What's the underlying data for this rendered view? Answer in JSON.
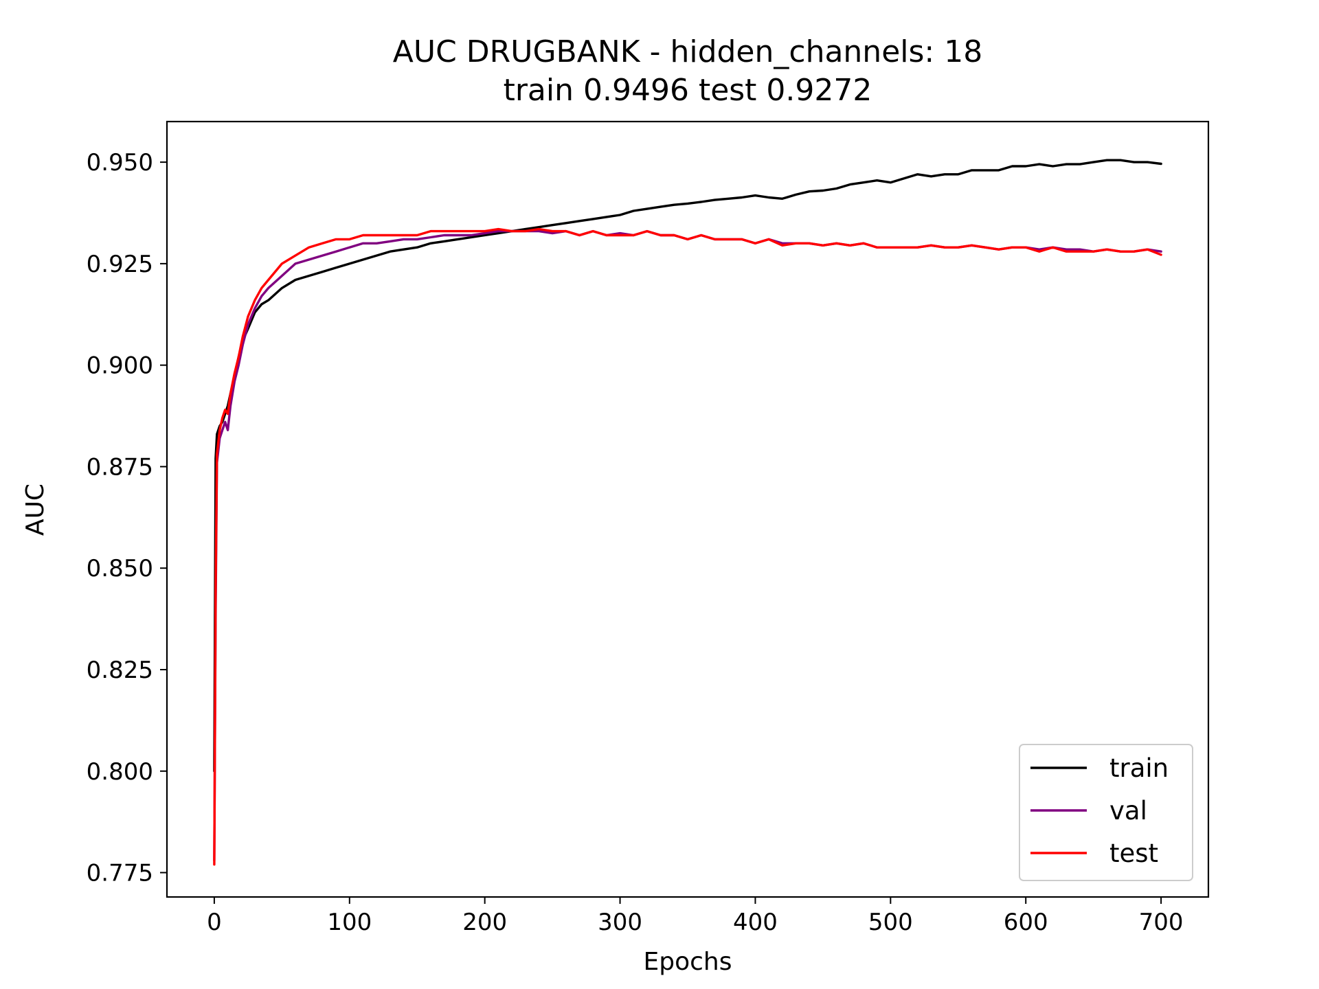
{
  "chart_data": {
    "type": "line",
    "title": "AUC DRUGBANK - hidden_channels: 18",
    "subtitle": "train 0.9496 test 0.9272",
    "xlabel": "Epochs",
    "ylabel": "AUC",
    "xlim": [
      -35,
      735
    ],
    "ylim": [
      0.769,
      0.96
    ],
    "xticks": [
      0,
      100,
      200,
      300,
      400,
      500,
      600,
      700
    ],
    "xtick_labels": [
      "0",
      "100",
      "200",
      "300",
      "400",
      "500",
      "600",
      "700"
    ],
    "yticks": [
      0.775,
      0.8,
      0.825,
      0.85,
      0.875,
      0.9,
      0.925,
      0.95
    ],
    "ytick_labels": [
      "0.775",
      "0.800",
      "0.825",
      "0.850",
      "0.875",
      "0.900",
      "0.925",
      "0.950"
    ],
    "grid": false,
    "legend_position": "bottom-right",
    "series": [
      {
        "name": "train",
        "color": "#000000",
        "x": [
          0,
          1,
          2,
          4,
          6,
          8,
          10,
          12,
          15,
          18,
          21,
          25,
          30,
          35,
          40,
          50,
          60,
          70,
          80,
          90,
          100,
          110,
          120,
          130,
          140,
          150,
          160,
          170,
          180,
          190,
          200,
          210,
          220,
          230,
          240,
          250,
          260,
          270,
          280,
          290,
          300,
          310,
          320,
          330,
          340,
          350,
          360,
          370,
          380,
          390,
          400,
          410,
          420,
          430,
          440,
          450,
          460,
          470,
          480,
          490,
          500,
          510,
          520,
          530,
          540,
          550,
          560,
          570,
          580,
          590,
          600,
          610,
          620,
          630,
          640,
          650,
          660,
          670,
          680,
          690,
          700
        ],
        "y": [
          0.8,
          0.877,
          0.883,
          0.885,
          0.886,
          0.888,
          0.89,
          0.893,
          0.897,
          0.902,
          0.906,
          0.909,
          0.913,
          0.915,
          0.916,
          0.919,
          0.921,
          0.922,
          0.923,
          0.924,
          0.925,
          0.926,
          0.927,
          0.928,
          0.9285,
          0.929,
          0.93,
          0.9305,
          0.931,
          0.9315,
          0.932,
          0.9325,
          0.933,
          0.9335,
          0.934,
          0.9345,
          0.935,
          0.9355,
          0.936,
          0.9365,
          0.937,
          0.938,
          0.9385,
          0.939,
          0.9395,
          0.9398,
          0.9402,
          0.9407,
          0.941,
          0.9413,
          0.9418,
          0.9413,
          0.941,
          0.942,
          0.9428,
          0.943,
          0.9435,
          0.9445,
          0.945,
          0.9455,
          0.945,
          0.946,
          0.947,
          0.9465,
          0.947,
          0.947,
          0.948,
          0.948,
          0.948,
          0.949,
          0.949,
          0.9495,
          0.949,
          0.9495,
          0.9495,
          0.95,
          0.9505,
          0.9505,
          0.95,
          0.95,
          0.9496
        ]
      },
      {
        "name": "val",
        "color": "#800080",
        "x": [
          0,
          1,
          2,
          4,
          6,
          8,
          10,
          12,
          15,
          18,
          21,
          25,
          30,
          35,
          40,
          50,
          60,
          70,
          80,
          90,
          100,
          110,
          120,
          130,
          140,
          150,
          160,
          170,
          180,
          190,
          200,
          210,
          220,
          230,
          240,
          250,
          260,
          270,
          280,
          290,
          300,
          310,
          320,
          330,
          340,
          350,
          360,
          370,
          380,
          390,
          400,
          410,
          420,
          430,
          440,
          450,
          460,
          470,
          480,
          490,
          500,
          510,
          520,
          530,
          540,
          550,
          560,
          570,
          580,
          590,
          600,
          610,
          620,
          630,
          640,
          650,
          660,
          670,
          680,
          690,
          700
        ],
        "y": [
          0.778,
          0.84,
          0.876,
          0.882,
          0.884,
          0.886,
          0.884,
          0.89,
          0.896,
          0.9,
          0.905,
          0.91,
          0.914,
          0.917,
          0.919,
          0.922,
          0.925,
          0.926,
          0.927,
          0.928,
          0.929,
          0.93,
          0.93,
          0.9305,
          0.931,
          0.931,
          0.9315,
          0.932,
          0.932,
          0.932,
          0.9325,
          0.933,
          0.933,
          0.933,
          0.933,
          0.9325,
          0.933,
          0.932,
          0.933,
          0.932,
          0.9325,
          0.932,
          0.933,
          0.932,
          0.932,
          0.931,
          0.932,
          0.931,
          0.931,
          0.931,
          0.93,
          0.931,
          0.93,
          0.93,
          0.93,
          0.9295,
          0.93,
          0.9295,
          0.93,
          0.929,
          0.929,
          0.929,
          0.929,
          0.9295,
          0.929,
          0.929,
          0.9295,
          0.929,
          0.9285,
          0.929,
          0.929,
          0.9285,
          0.929,
          0.9285,
          0.9285,
          0.928,
          0.9285,
          0.928,
          0.928,
          0.9285,
          0.928
        ]
      },
      {
        "name": "test",
        "color": "#ff0000",
        "x": [
          0,
          1,
          2,
          4,
          6,
          8,
          10,
          12,
          15,
          18,
          21,
          25,
          30,
          35,
          40,
          50,
          60,
          70,
          80,
          90,
          100,
          110,
          120,
          130,
          140,
          150,
          160,
          170,
          180,
          190,
          200,
          210,
          220,
          230,
          240,
          250,
          260,
          270,
          280,
          290,
          300,
          310,
          320,
          330,
          340,
          350,
          360,
          370,
          380,
          390,
          400,
          410,
          420,
          430,
          440,
          450,
          460,
          470,
          480,
          490,
          500,
          510,
          520,
          530,
          540,
          550,
          560,
          570,
          580,
          590,
          600,
          610,
          620,
          630,
          640,
          650,
          660,
          670,
          680,
          690,
          700
        ],
        "y": [
          0.777,
          0.845,
          0.878,
          0.884,
          0.887,
          0.889,
          0.888,
          0.893,
          0.898,
          0.902,
          0.907,
          0.912,
          0.916,
          0.919,
          0.921,
          0.925,
          0.927,
          0.929,
          0.93,
          0.931,
          0.931,
          0.932,
          0.932,
          0.932,
          0.932,
          0.932,
          0.933,
          0.933,
          0.933,
          0.933,
          0.933,
          0.9335,
          0.933,
          0.933,
          0.9335,
          0.933,
          0.933,
          0.932,
          0.933,
          0.932,
          0.932,
          0.932,
          0.933,
          0.932,
          0.932,
          0.931,
          0.932,
          0.931,
          0.931,
          0.931,
          0.93,
          0.931,
          0.9295,
          0.93,
          0.93,
          0.9295,
          0.93,
          0.9295,
          0.93,
          0.929,
          0.929,
          0.929,
          0.929,
          0.9295,
          0.929,
          0.929,
          0.9295,
          0.929,
          0.9285,
          0.929,
          0.929,
          0.928,
          0.929,
          0.928,
          0.928,
          0.928,
          0.9285,
          0.928,
          0.928,
          0.9285,
          0.9272
        ]
      }
    ]
  }
}
